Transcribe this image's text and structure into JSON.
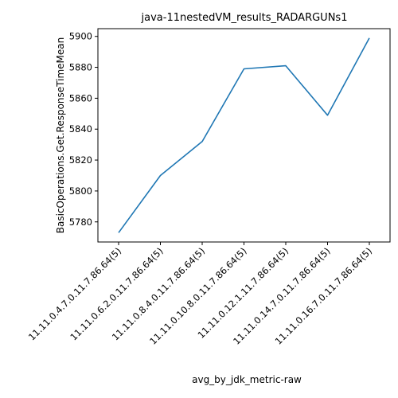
{
  "chart_data": {
    "type": "line",
    "title": "java-11nestedVM_results_RADARGUNs1",
    "xlabel": "avg_by_jdk_metric-raw",
    "ylabel": "BasicOperations.Get.ResponseTimeMean",
    "categories": [
      "11.11.0.4.7.0.11.7.86.64(5)",
      "11.11.0.6.2.0.11.7.86.64(5)",
      "11.11.0.8.4.0.11.7.86.64(5)",
      "11.11.0.10.8.0.11.7.86.64(5)",
      "11.11.0.12.1.11.7.86.64(5)",
      "11.11.0.14.7.0.11.7.86.64(5)",
      "11.11.0.16.7.0.11.7.86.64(5)"
    ],
    "series": [
      {
        "values": [
          5773,
          5810,
          5832,
          5879,
          5881,
          5849,
          5899
        ]
      }
    ],
    "yticks": [
      5780,
      5800,
      5820,
      5840,
      5860,
      5880,
      5900
    ],
    "ylim": [
      5767,
      5905
    ],
    "grid": false,
    "colors": {
      "line": "#1f77b4"
    }
  }
}
